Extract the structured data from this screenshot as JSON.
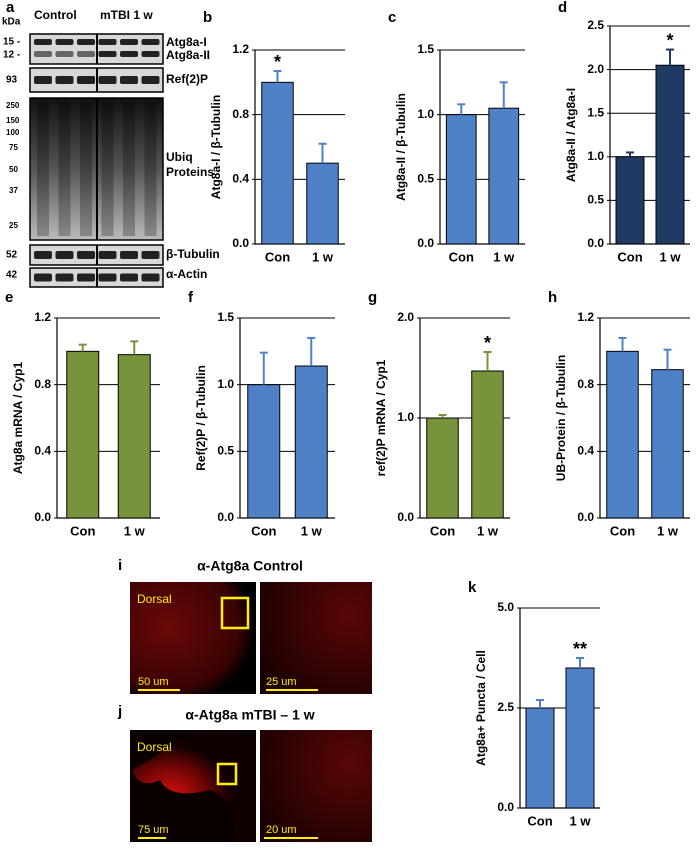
{
  "chart_data": [
    {
      "type": "bar",
      "panel": "b",
      "ylabel": "Atg8a-I / β-Tubulin",
      "categories": [
        "Con",
        "1 w"
      ],
      "values": [
        1.0,
        0.5
      ],
      "errors": [
        0.07,
        0.12
      ],
      "significance": [
        "*",
        null
      ],
      "color": "#4f81c7",
      "ylim": [
        0,
        1.2
      ],
      "yticks": [
        {
          "value": 0,
          "label": "0.0"
        },
        0.4,
        0.8,
        1.2
      ],
      "grid": true
    },
    {
      "type": "bar",
      "panel": "c",
      "ylabel": "Atg8a-II / β-Tubulin",
      "categories": [
        "Con",
        "1 w"
      ],
      "values": [
        1.0,
        1.05
      ],
      "errors": [
        0.08,
        0.2
      ],
      "significance": [
        null,
        null
      ],
      "color": "#4f81c7",
      "ylim": [
        0,
        1.5
      ],
      "yticks": [
        {
          "value": 0,
          "label": "0.0"
        },
        0.5,
        {
          "value": 1,
          "label": "1.0"
        },
        1.5
      ],
      "grid": true
    },
    {
      "type": "bar",
      "panel": "d",
      "ylabel": "Atg8a-II / Atg8a-I",
      "categories": [
        "Con",
        "1 w"
      ],
      "values": [
        1.0,
        2.05
      ],
      "errors": [
        0.05,
        0.18
      ],
      "significance": [
        null,
        "*"
      ],
      "color": "#1f3a63",
      "ylim": [
        0,
        2.5
      ],
      "yticks": [
        {
          "value": 0,
          "label": "0.0"
        },
        0.5,
        {
          "value": 1,
          "label": "1.0"
        },
        1.5,
        {
          "value": 2,
          "label": "2.0"
        },
        2.5
      ],
      "grid": true
    },
    {
      "type": "bar",
      "panel": "e",
      "ylabel": "Atg8a mRNA / Cyp1",
      "categories": [
        "Con",
        "1 w"
      ],
      "values": [
        1.0,
        0.98
      ],
      "errors": [
        0.04,
        0.08
      ],
      "significance": [
        null,
        null
      ],
      "color": "#77933c",
      "ylim": [
        0,
        1.2
      ],
      "yticks": [
        {
          "value": 0,
          "label": "0.0"
        },
        0.4,
        0.8,
        1.2
      ],
      "grid": true
    },
    {
      "type": "bar",
      "panel": "f",
      "ylabel": "Ref(2)P / β-Tubulin",
      "categories": [
        "Con",
        "1 w"
      ],
      "values": [
        1.0,
        1.14
      ],
      "errors": [
        0.24,
        0.21
      ],
      "significance": [
        null,
        null
      ],
      "color": "#4f81c7",
      "ylim": [
        0,
        1.5
      ],
      "yticks": [
        {
          "value": 0,
          "label": "0.0"
        },
        0.5,
        {
          "value": 1,
          "label": "1.0"
        },
        1.5
      ],
      "grid": true
    },
    {
      "type": "bar",
      "panel": "g",
      "ylabel": "ref(2)P mRNA / Cyp1",
      "categories": [
        "Con",
        "1 w"
      ],
      "values": [
        1.0,
        1.47
      ],
      "errors": [
        0.03,
        0.19
      ],
      "significance": [
        null,
        "*"
      ],
      "color": "#77933c",
      "ylim": [
        0,
        2.0
      ],
      "yticks": [
        {
          "value": 0,
          "label": "0.0"
        },
        {
          "value": 1,
          "label": "1.0"
        },
        {
          "value": 2,
          "label": "2.0"
        }
      ],
      "grid": true
    },
    {
      "type": "bar",
      "panel": "h",
      "ylabel": "UB-Protein / β-Tubulin",
      "categories": [
        "Con",
        "1 w"
      ],
      "values": [
        1.0,
        0.89
      ],
      "errors": [
        0.08,
        0.12
      ],
      "significance": [
        null,
        null
      ],
      "color": "#4f81c7",
      "ylim": [
        0,
        1.2
      ],
      "yticks": [
        {
          "value": 0,
          "label": "0.0"
        },
        0.4,
        0.8,
        1.2
      ],
      "grid": true
    },
    {
      "type": "bar",
      "panel": "k",
      "ylabel": "Atg8a+ Puncta / Cell",
      "categories": [
        "Con",
        "1 w"
      ],
      "values": [
        2.5,
        3.5
      ],
      "errors": [
        0.2,
        0.25
      ],
      "significance": [
        null,
        "**"
      ],
      "color": "#4f81c7",
      "ylim": [
        0,
        5.0
      ],
      "yticks": [
        {
          "value": 0,
          "label": "0.0"
        },
        2.5,
        {
          "value": 5,
          "label": "5.0"
        }
      ],
      "grid": true
    }
  ],
  "blot": {
    "panel": "a",
    "unit": "kDa",
    "groups": [
      "Control",
      "mTBI 1 w"
    ],
    "markers": [
      "15 -",
      "12 -",
      "93",
      "250",
      "150",
      "100",
      "75",
      "50",
      "37",
      "25",
      "52",
      "42"
    ],
    "labels": [
      "Atg8a-I",
      "Atg8a-II",
      "Ref(2)P",
      "Ubiq",
      "Proteins",
      "β-Tubulin",
      "α-Actin"
    ]
  },
  "images": [
    {
      "panel": "i",
      "title": "α-Atg8a Control",
      "region": "Dorsal",
      "scale_left": "50 um",
      "scale_right": "25 um"
    },
    {
      "panel": "j",
      "title": "α-Atg8a mTBI – 1 w",
      "region": "Dorsal",
      "scale_left": "75 um",
      "scale_right": "20 um"
    }
  ]
}
